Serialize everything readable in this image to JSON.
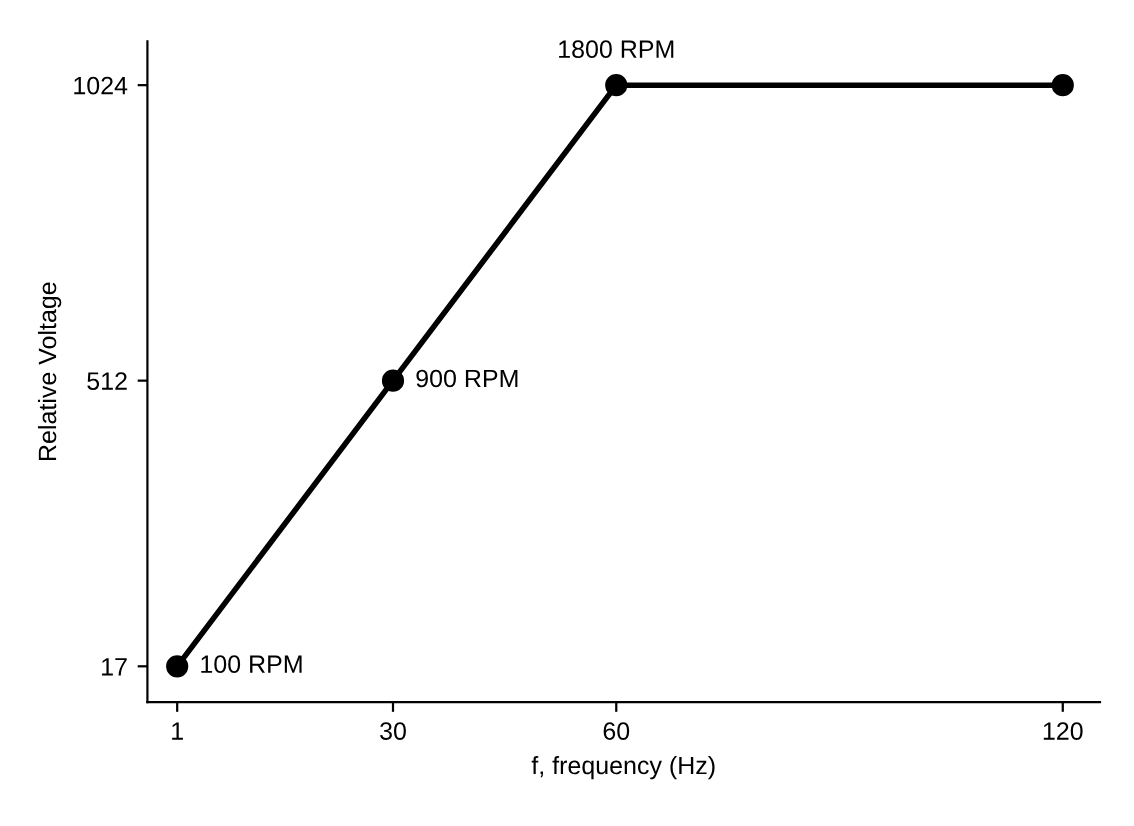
{
  "chart_data": {
    "type": "line",
    "xlabel": "f, frequency (Hz)",
    "ylabel": "Relative Voltage",
    "x": [
      1,
      30,
      60,
      120
    ],
    "series": [
      {
        "color": "#000000",
        "values": [
          17,
          512,
          1024,
          1024
        ]
      }
    ],
    "annotations": [
      {
        "text": "100 RPM",
        "x": 1,
        "y": 17
      },
      {
        "text": "900 RPM",
        "x": 30,
        "y": 512
      },
      {
        "text": "1800 RPM",
        "x": 60,
        "y": 1024
      }
    ],
    "xlim": [
      -3,
      125
    ],
    "ylim": [
      -45,
      1100
    ],
    "xticks": [
      1,
      30,
      60,
      120
    ],
    "yticks": [
      17,
      512,
      1024
    ],
    "grid": false,
    "legend": false,
    "marker": "circle",
    "line_style": "solid"
  }
}
